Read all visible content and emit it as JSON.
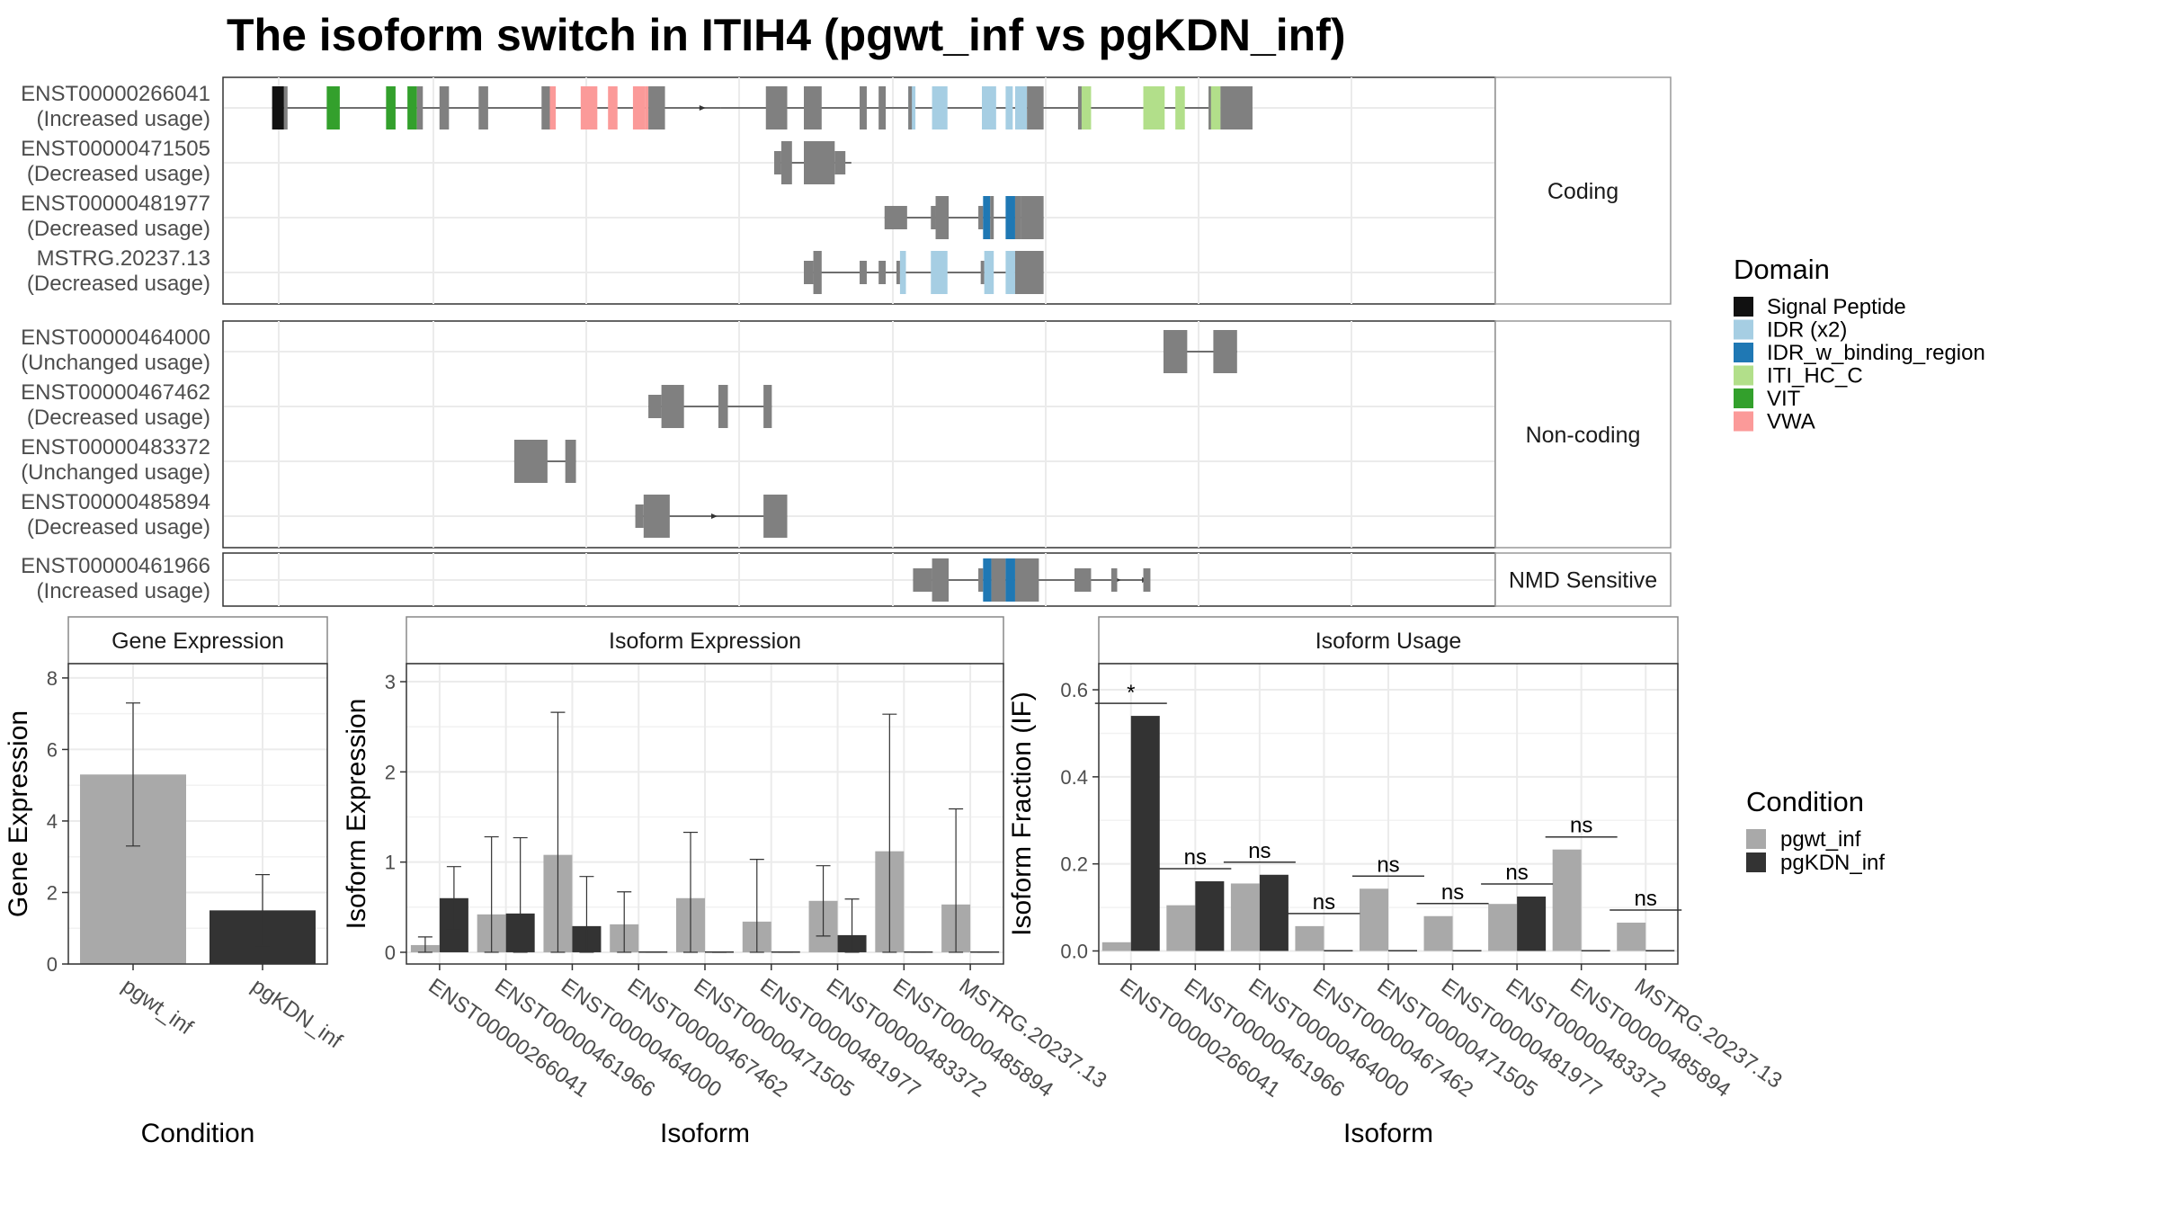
{
  "title": "The isoform switch in ITIH4 (pgwt_inf vs pgKDN_inf)",
  "colors": {
    "exon": "#808080",
    "pgwt_inf": "#a9a9a9",
    "pgKDN_inf": "#333333",
    "Signal Peptide": "#111111",
    "IDR (x2)": "#a6cee3",
    "IDR_w_binding_region": "#1f78b4",
    "ITI_HC_C": "#b2df8a",
    "VIT": "#33a02c",
    "VWA": "#fb9a99"
  },
  "structure": {
    "genomic_range": [
      0,
      1000
    ],
    "panels": [
      {
        "label": "Coding",
        "tracks": [
          {
            "id": "ENST00000266041",
            "usage": "(Increased usage)",
            "introns": [
              [
                2,
                75
              ],
              [
                75,
                380
              ],
              [
                380,
                800
              ]
            ],
            "intron_arrows": [
              365
            ],
            "exons": [
              [
                2,
                12,
                "Signal Peptide"
              ],
              [
                12,
                15,
                null
              ],
              [
                48,
                59,
                "VIT"
              ],
              [
                98,
                106,
                "VIT"
              ],
              [
                116,
                124,
                "VIT"
              ],
              [
                124,
                129,
                null
              ],
              [
                143,
                151,
                null
              ],
              [
                176,
                184,
                null
              ],
              [
                229,
                236,
                null
              ],
              [
                236,
                241,
                "VWA"
              ],
              [
                262,
                276,
                "VWA"
              ],
              [
                285,
                293,
                "VWA"
              ],
              [
                306,
                316,
                "VWA"
              ],
              [
                316,
                319,
                "VWA"
              ],
              [
                319,
                333,
                null
              ],
              [
                418,
                436,
                null
              ],
              [
                450,
                465,
                null
              ],
              [
                497,
                503,
                null
              ],
              [
                513,
                519,
                null
              ],
              [
                538,
                544,
                "IDR (x2)"
              ],
              [
                538,
                541,
                null
              ],
              [
                558,
                571,
                "IDR (x2)"
              ],
              [
                600,
                612,
                "IDR (x2)"
              ],
              [
                620,
                626,
                "IDR (x2)"
              ],
              [
                628,
                638,
                "IDR (x2)"
              ],
              [
                638,
                652,
                null
              ],
              [
                681,
                689,
                null
              ],
              [
                684,
                692,
                "ITI_HC_C"
              ],
              [
                736,
                754,
                "ITI_HC_C"
              ],
              [
                763,
                771,
                "ITI_HC_C"
              ],
              [
                791,
                801,
                "ITI_HC_C"
              ],
              [
                791,
                793,
                null
              ],
              [
                801,
                828,
                null
              ]
            ],
            "thick": []
          },
          {
            "id": "ENST00000471505",
            "usage": "(Decreased usage)",
            "introns": [
              [
                425,
                490
              ]
            ],
            "intron_arrows": [],
            "exons": [
              [
                425,
                431,
                null
              ],
              [
                431,
                440,
                null
              ],
              [
                450,
                476,
                null
              ],
              [
                476,
                485,
                null
              ]
            ],
            "thick": [
              [
                431,
                440
              ],
              [
                450,
                476
              ]
            ]
          },
          {
            "id": "ENST00000481977",
            "usage": "(Decreased usage)",
            "introns": [
              [
                518,
                652
              ]
            ],
            "intron_arrows": [],
            "exons": [
              [
                518,
                537,
                null
              ],
              [
                557,
                561,
                null
              ],
              [
                561,
                572,
                null
              ],
              [
                597,
                601,
                null
              ],
              [
                601,
                607,
                "IDR_w_binding_region"
              ],
              [
                607,
                610,
                null
              ],
              [
                620,
                628,
                "IDR_w_binding_region"
              ],
              [
                628,
                633,
                null
              ],
              [
                633,
                652,
                null
              ]
            ],
            "thick": [
              [
                561,
                572
              ],
              [
                601,
                610
              ],
              [
                620,
                652
              ]
            ]
          },
          {
            "id": "MSTRG.20237.13",
            "usage": "(Decreased usage)",
            "introns": [
              [
                450,
                652
              ]
            ],
            "intron_arrows": [],
            "exons": [
              [
                450,
                458,
                null
              ],
              [
                458,
                465,
                null
              ],
              [
                497,
                503,
                null
              ],
              [
                513,
                519,
                null
              ],
              [
                528,
                531,
                null
              ],
              [
                531,
                536,
                "IDR (x2)"
              ],
              [
                557,
                571,
                "IDR (x2)"
              ],
              [
                599,
                602,
                null
              ],
              [
                602,
                610,
                "IDR (x2)"
              ],
              [
                620,
                628,
                "IDR (x2)"
              ],
              [
                628,
                652,
                null
              ]
            ],
            "thick": [
              [
                458,
                465
              ],
              [
                531,
                536
              ],
              [
                557,
                571
              ],
              [
                602,
                610
              ],
              [
                628,
                652
              ]
            ]
          }
        ]
      },
      {
        "label": "Non-coding",
        "tracks": [
          {
            "id": "ENST00000464000",
            "usage": "(Unchanged usage)",
            "introns": [
              [
                753,
                815
              ]
            ],
            "intron_arrows": [],
            "exons": [
              [
                753,
                773,
                null
              ],
              [
                795,
                815,
                null
              ]
            ],
            "thick": []
          },
          {
            "id": "ENST00000467462",
            "usage": "(Decreased usage)",
            "introns": [
              [
                319,
                423
              ]
            ],
            "intron_arrows": [],
            "exons": [
              [
                319,
                330,
                null
              ],
              [
                330,
                349,
                null
              ],
              [
                378,
                386,
                null
              ],
              [
                416,
                423,
                null
              ]
            ],
            "thick": [
              [
                330,
                349
              ],
              [
                378,
                386
              ],
              [
                416,
                423
              ]
            ]
          },
          {
            "id": "ENST00000483372",
            "usage": "(Unchanged usage)",
            "introns": [
              [
                206,
                258
              ]
            ],
            "intron_arrows": [],
            "exons": [
              [
                206,
                234,
                null
              ],
              [
                249,
                258,
                null
              ]
            ],
            "thick": []
          },
          {
            "id": "ENST00000485894",
            "usage": "(Decreased usage)",
            "introns": [
              [
                308,
                436
              ]
            ],
            "intron_arrows": [
              375,
              420
            ],
            "exons": [
              [
                308,
                315,
                null
              ],
              [
                315,
                337,
                null
              ],
              [
                416,
                436,
                null
              ]
            ],
            "thick": [
              [
                315,
                337
              ],
              [
                416,
                436
              ]
            ]
          }
        ]
      },
      {
        "label": "NMD Sensitive",
        "tracks": [
          {
            "id": "ENST00000461966",
            "usage": "(Increased usage)",
            "introns": [
              [
                542,
                740
              ]
            ],
            "intron_arrows": [
              715,
              738
            ],
            "exons": [
              [
                542,
                558,
                null
              ],
              [
                558,
                572,
                null
              ],
              [
                597,
                601,
                null
              ],
              [
                601,
                608,
                "IDR_w_binding_region"
              ],
              [
                608,
                620,
                null
              ],
              [
                620,
                628,
                "IDR_w_binding_region"
              ],
              [
                628,
                648,
                null
              ],
              [
                678,
                692,
                null
              ],
              [
                709,
                714,
                null
              ],
              [
                736,
                742,
                null
              ]
            ],
            "thick": [
              [
                558,
                572
              ],
              [
                601,
                648
              ]
            ]
          }
        ]
      }
    ]
  },
  "domain_legend": {
    "title": "Domain",
    "items": [
      "Signal Peptide",
      "IDR (x2)",
      "IDR_w_binding_region",
      "ITI_HC_C",
      "VIT",
      "VWA"
    ]
  },
  "condition_legend": {
    "title": "Condition",
    "items": [
      "pgwt_inf",
      "pgKDN_inf"
    ]
  },
  "chart_data": [
    {
      "type": "bar",
      "title": "Gene Expression",
      "xlabel": "Condition",
      "ylabel": "Gene Expression",
      "categories": [
        "pgwt_inf",
        "pgKDN_inf"
      ],
      "values": [
        5.3,
        1.5
      ],
      "error": [
        [
          3.3,
          7.3
        ],
        [
          0.5,
          2.5
        ]
      ],
      "ylim": [
        0,
        8.4
      ],
      "yticks": [
        0,
        2,
        4,
        6,
        8
      ]
    },
    {
      "type": "bar",
      "title": "Isoform Expression",
      "xlabel": "Isoform",
      "ylabel": "Isoform Expression",
      "categories": [
        "ENST00000266041",
        "ENST00000461966",
        "ENST00000464000",
        "ENST00000467462",
        "ENST00000471505",
        "ENST00000481977",
        "ENST00000483372",
        "ENST00000485894",
        "MSTRG.20237.13"
      ],
      "series": [
        {
          "name": "pgwt_inf",
          "values": [
            0.08,
            0.42,
            1.08,
            0.31,
            0.6,
            0.34,
            0.57,
            1.12,
            0.53
          ],
          "error": [
            [
              0.0,
              0.17
            ],
            [
              0.0,
              1.28
            ],
            [
              0.0,
              2.66
            ],
            [
              0.0,
              0.67
            ],
            [
              0.0,
              1.33
            ],
            [
              0.0,
              1.03
            ],
            [
              0.18,
              0.96
            ],
            [
              0.0,
              2.64
            ],
            [
              0.0,
              1.59
            ]
          ]
        },
        {
          "name": "pgKDN_inf",
          "values": [
            0.6,
            0.43,
            0.29,
            0.0,
            0.0,
            0.0,
            0.19,
            0.0,
            0.0
          ],
          "error": [
            [
              0.25,
              0.95
            ],
            [
              0.0,
              1.27
            ],
            [
              0.0,
              0.84
            ],
            [
              0.0,
              0.0
            ],
            [
              0.0,
              0.0
            ],
            [
              0.0,
              0.0
            ],
            [
              0.0,
              0.59
            ],
            [
              0.0,
              0.0
            ],
            [
              0.0,
              0.0
            ]
          ]
        }
      ],
      "ylim": [
        -0.13,
        3.2
      ],
      "yticks": [
        0,
        1,
        2,
        3
      ]
    },
    {
      "type": "bar",
      "title": "Isoform Usage",
      "xlabel": "Isoform",
      "ylabel": "Isoform Fraction (IF)",
      "categories": [
        "ENST00000266041",
        "ENST00000461966",
        "ENST00000464000",
        "ENST00000467462",
        "ENST00000471505",
        "ENST00000481977",
        "ENST00000483372",
        "ENST00000485894",
        "MSTRG.20237.13"
      ],
      "series": [
        {
          "name": "pgwt_inf",
          "values": [
            0.02,
            0.105,
            0.155,
            0.057,
            0.143,
            0.08,
            0.108,
            0.233,
            0.065
          ]
        },
        {
          "name": "pgKDN_inf",
          "values": [
            0.54,
            0.16,
            0.175,
            0.0,
            0.0,
            0.0,
            0.125,
            0.0,
            0.0
          ]
        }
      ],
      "significance": [
        "*",
        "ns",
        "ns",
        "ns",
        "ns",
        "ns",
        "ns",
        "ns",
        "ns"
      ],
      "ylim": [
        -0.03,
        0.66
      ],
      "yticks": [
        0.0,
        0.2,
        0.4,
        0.6
      ]
    }
  ]
}
